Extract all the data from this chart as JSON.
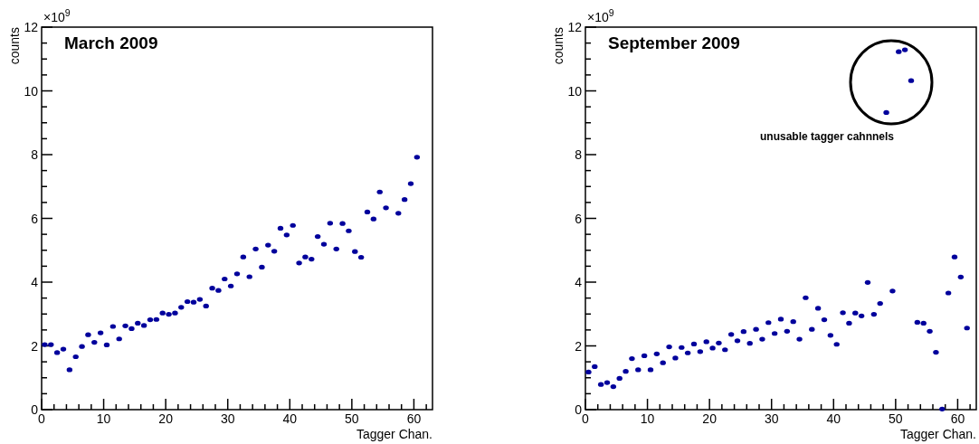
{
  "chart_data": [
    {
      "type": "scatter",
      "title": "March 2009",
      "xlabel": "Tagger Chan.",
      "ylabel": "counts",
      "xlim": [
        0,
        63
      ],
      "ylim": [
        0,
        12
      ],
      "xticks": [
        0,
        10,
        20,
        30,
        40,
        50,
        60
      ],
      "yticks": [
        0,
        2,
        4,
        6,
        8,
        10,
        12
      ],
      "marker": "circle",
      "annotations": [
        "×10$^{9}$"
      ],
      "series": [
        {
          "color": "#00009c",
          "x": [
            0.5,
            1.5,
            2.5,
            3.5,
            4.5,
            5.5,
            6.5,
            7.5,
            8.5,
            9.5,
            10.5,
            11.5,
            12.5,
            13.5,
            14.5,
            15.5,
            16.5,
            17.5,
            18.5,
            19.5,
            20.5,
            21.5,
            22.5,
            23.5,
            24.5,
            25.5,
            26.5,
            27.5,
            28.5,
            29.5,
            30.5,
            31.5,
            32.5,
            33.5,
            34.5,
            35.5,
            36.5,
            37.5,
            38.5,
            39.5,
            40.5,
            41.5,
            42.5,
            43.5,
            44.5,
            45.5,
            46.5,
            47.5,
            48.5,
            49.5,
            50.5,
            51.5,
            52.5,
            53.5,
            54.5,
            55.5,
            57.5,
            58.5,
            59.5,
            60.5
          ],
          "values": [
            2.04,
            2.04,
            1.79,
            1.9,
            1.25,
            1.66,
            1.98,
            2.35,
            2.11,
            2.41,
            2.03,
            2.61,
            2.22,
            2.63,
            2.54,
            2.71,
            2.64,
            2.82,
            2.83,
            3.03,
            2.99,
            3.03,
            3.21,
            3.39,
            3.37,
            3.46,
            3.25,
            3.81,
            3.74,
            4.1,
            3.88,
            4.26,
            4.79,
            4.17,
            5.04,
            4.47,
            5.16,
            4.97,
            5.69,
            5.48,
            5.78,
            4.6,
            4.79,
            4.72,
            5.43,
            5.19,
            5.85,
            5.04,
            5.84,
            5.61,
            4.96,
            4.78,
            6.2,
            5.98,
            6.83,
            6.33,
            6.16,
            6.59,
            7.09,
            7.92
          ]
        }
      ]
    },
    {
      "type": "scatter",
      "title": "September 2009",
      "xlabel": "Tagger Chan.",
      "ylabel": "counts",
      "xlim": [
        0,
        63
      ],
      "ylim": [
        0,
        12
      ],
      "xticks": [
        0,
        10,
        20,
        30,
        40,
        50,
        60
      ],
      "yticks": [
        0,
        2,
        4,
        6,
        8,
        10,
        12
      ],
      "marker": "circle",
      "annotations": [
        "×10$^{9}$",
        "unusable tagger cahnnels"
      ],
      "series": [
        {
          "color": "#00009c",
          "x": [
            0.5,
            1.5,
            2.5,
            3.5,
            4.5,
            5.5,
            6.5,
            7.5,
            8.5,
            9.5,
            10.5,
            11.5,
            12.5,
            13.5,
            14.5,
            15.5,
            16.5,
            17.5,
            18.5,
            19.5,
            20.5,
            21.5,
            22.5,
            23.5,
            24.5,
            25.5,
            26.5,
            27.5,
            28.5,
            29.5,
            30.5,
            31.5,
            32.5,
            33.5,
            34.5,
            35.5,
            36.5,
            37.5,
            38.5,
            39.5,
            40.5,
            41.5,
            42.5,
            43.5,
            44.5,
            45.5,
            46.5,
            47.5,
            48.5,
            49.5,
            50.5,
            51.5,
            52.5,
            53.5,
            54.5,
            55.5,
            56.5,
            57.5,
            58.5,
            59.5,
            60.5,
            61.5
          ],
          "values": [
            1.18,
            1.35,
            0.79,
            0.85,
            0.72,
            0.98,
            1.2,
            1.6,
            1.25,
            1.69,
            1.25,
            1.75,
            1.47,
            1.97,
            1.62,
            1.95,
            1.78,
            2.06,
            1.82,
            2.13,
            1.93,
            2.09,
            1.88,
            2.36,
            2.16,
            2.45,
            2.08,
            2.52,
            2.21,
            2.73,
            2.39,
            2.84,
            2.46,
            2.76,
            2.21,
            3.51,
            2.52,
            3.18,
            2.82,
            2.33,
            2.05,
            3.04,
            2.71,
            3.03,
            2.94,
            3.99,
            2.99,
            3.33,
            9.32,
            3.72,
            11.23,
            11.29,
            10.32,
            2.74,
            2.71,
            2.46,
            1.8,
            0.02,
            3.66,
            4.79,
            4.16,
            2.56
          ]
        }
      ]
    }
  ]
}
